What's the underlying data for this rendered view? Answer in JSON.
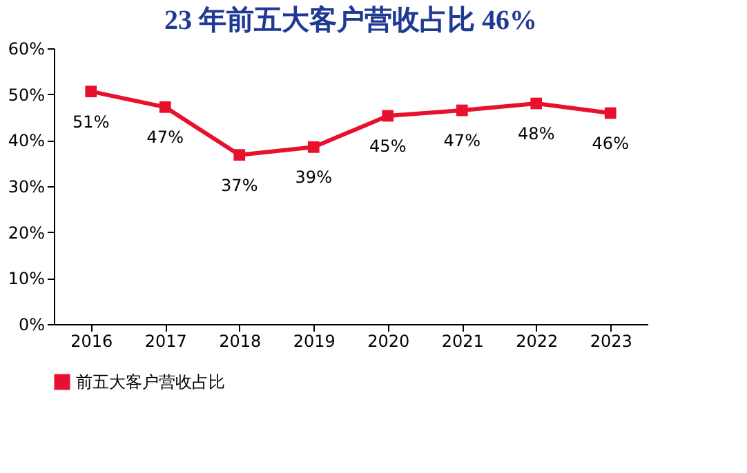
{
  "chart_data": {
    "type": "line",
    "title": "23 年前五大客户营收占比 46%",
    "categories": [
      "2016",
      "2017",
      "2018",
      "2019",
      "2020",
      "2021",
      "2022",
      "2023"
    ],
    "series": [
      {
        "name": "前五大客户营收占比",
        "color": "#e8112d",
        "values": [
          50.6,
          47.2,
          36.8,
          38.5,
          45.3,
          46.5,
          48.0,
          45.9
        ],
        "value_labels": [
          "51%",
          "47%",
          "37%",
          "39%",
          "45%",
          "47%",
          "48%",
          "46%"
        ]
      }
    ],
    "ylim": [
      0,
      60
    ],
    "yticks": [
      {
        "value": 0,
        "label": "0%"
      },
      {
        "value": 10,
        "label": "10%"
      },
      {
        "value": 20,
        "label": "20%"
      },
      {
        "value": 30,
        "label": "30%"
      },
      {
        "value": 40,
        "label": "40%"
      },
      {
        "value": 50,
        "label": "50%"
      },
      {
        "value": 60,
        "label": "60%"
      }
    ],
    "grid": false,
    "legend": "bottom",
    "marker": "square",
    "line_style": "solid"
  }
}
